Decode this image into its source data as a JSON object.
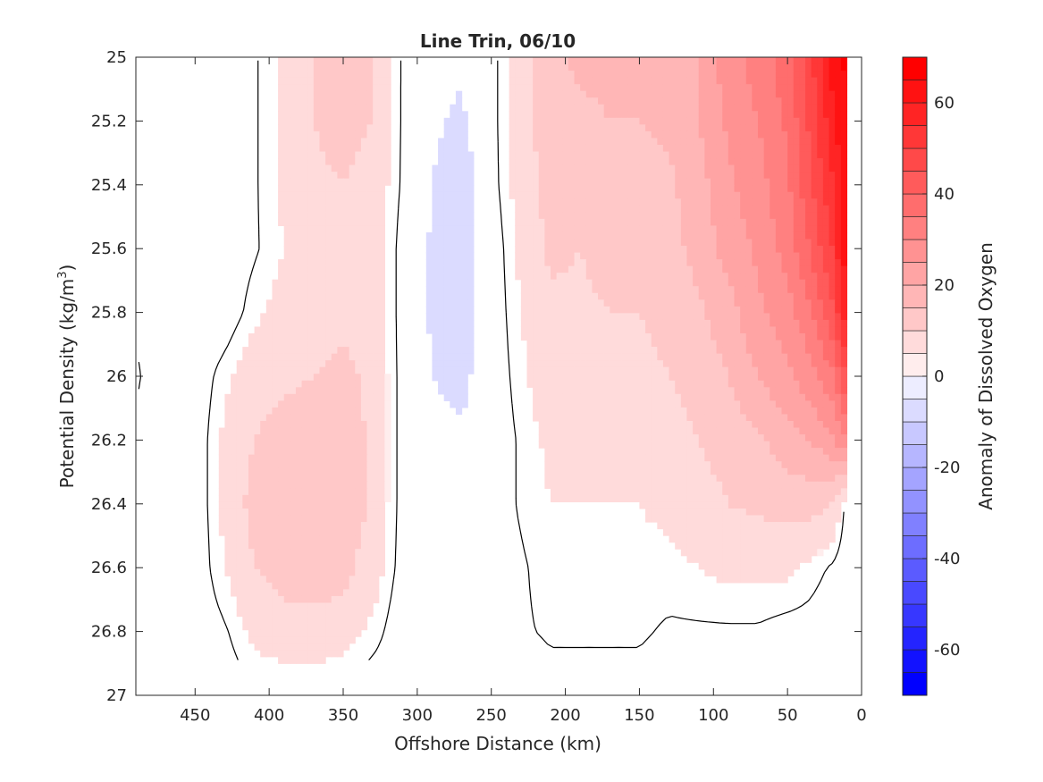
{
  "chart_data": {
    "type": "heatmap",
    "title": "Line Trin, 06/10",
    "xlabel": "Offshore Distance (km)",
    "ylabel_main": "Potential Density (kg/m",
    "ylabel_sup": "3",
    "ylabel_close": ")",
    "xlim": [
      490,
      0
    ],
    "ylim": [
      25,
      27
    ],
    "y_reversed": true,
    "x_reversed": true,
    "x_ticks": [
      450,
      400,
      350,
      300,
      250,
      200,
      150,
      100,
      50,
      0
    ],
    "x_tick_labels": [
      "450",
      "400",
      "350",
      "300",
      "250",
      "200",
      "150",
      "100",
      "50",
      "0"
    ],
    "y_ticks": [
      25,
      25.2,
      25.4,
      25.6,
      25.8,
      26,
      26.2,
      26.4,
      26.6,
      26.8,
      27
    ],
    "y_tick_labels": [
      "25",
      "25.2",
      "25.4",
      "25.6",
      "25.8",
      "26",
      "26.2",
      "26.4",
      "26.6",
      "26.8",
      "27"
    ],
    "colorbar": {
      "label": "Anomaly of Dissolved Oxygen",
      "range": [
        -70,
        70
      ],
      "step": 5,
      "ticks": [
        60,
        40,
        20,
        0,
        -20,
        -40,
        -60
      ],
      "tick_labels": [
        "60",
        "40",
        "20",
        "0",
        "-20",
        "-40",
        "-60"
      ],
      "colormap": "blue-white-red",
      "negative_color": "#0000ff",
      "positive_color": "#ff0000"
    },
    "grid": false,
    "x": [
      490,
      470,
      450,
      430,
      410,
      390,
      370,
      350,
      330,
      310,
      290,
      270,
      250,
      230,
      210,
      190,
      170,
      150,
      130,
      110,
      90,
      70,
      50,
      35,
      20,
      10
    ],
    "y": [
      25.0,
      25.2,
      25.4,
      25.6,
      25.8,
      26.0,
      26.2,
      26.4,
      26.6,
      26.8,
      26.9
    ],
    "values": [
      [
        0,
        0,
        0,
        0,
        2,
        6,
        10,
        12,
        10,
        2,
        -3,
        -4,
        1,
        8,
        14,
        16,
        16,
        16,
        17,
        20,
        28,
        32,
        38,
        48,
        62,
        66
      ],
      [
        0,
        0,
        0,
        0,
        2,
        6,
        10,
        12,
        10,
        2,
        -4,
        -6,
        1,
        8,
        13,
        14,
        15,
        15,
        16,
        20,
        26,
        30,
        36,
        46,
        58,
        66
      ],
      [
        0,
        0,
        0,
        0,
        2,
        6,
        9,
        10,
        8,
        2,
        -5,
        -9,
        1,
        7,
        12,
        12,
        13,
        13,
        14,
        18,
        24,
        28,
        34,
        44,
        54,
        64
      ],
      [
        0,
        0,
        0,
        0,
        2,
        5,
        8,
        9,
        8,
        1,
        -6,
        -10,
        0,
        6,
        11,
        10,
        12,
        12,
        13,
        17,
        22,
        26,
        32,
        40,
        50,
        64
      ],
      [
        2,
        0,
        0,
        0,
        4,
        7,
        8,
        9,
        8,
        1,
        -6,
        -9,
        0,
        5,
        9,
        9,
        10,
        10,
        11,
        14,
        18,
        24,
        28,
        34,
        44,
        60
      ],
      [
        3,
        0,
        0,
        4,
        8,
        9,
        10,
        11,
        9,
        1,
        -5,
        -7,
        0,
        4,
        8,
        8,
        9,
        9,
        10,
        12,
        15,
        20,
        24,
        28,
        34,
        46
      ],
      [
        2,
        -1,
        0,
        6,
        10,
        12,
        13,
        13,
        9,
        1,
        -3,
        -4,
        0,
        3,
        6,
        6,
        7,
        7,
        8,
        10,
        12,
        14,
        18,
        20,
        24,
        30
      ],
      [
        1,
        -3,
        0,
        6,
        12,
        13,
        15,
        14,
        9,
        1,
        -1,
        -1,
        0,
        3,
        5,
        5,
        5,
        5,
        6,
        8,
        10,
        11,
        12,
        12,
        10,
        1
      ],
      [
        0,
        0,
        0,
        5,
        10,
        12,
        13,
        12,
        7,
        1,
        0,
        0,
        0,
        2,
        4,
        4,
        4,
        4,
        4,
        5,
        6,
        6,
        6,
        4,
        2,
        0
      ],
      [
        0,
        0,
        0,
        2,
        6,
        8,
        8,
        7,
        4,
        0,
        0,
        0,
        0,
        2,
        3,
        3,
        3,
        3,
        2,
        2,
        2,
        2,
        1,
        1,
        0,
        0
      ],
      [
        0,
        0,
        0,
        1,
        4,
        5,
        5,
        4,
        2,
        0,
        0,
        0,
        0,
        1,
        2,
        2,
        2,
        2,
        1,
        1,
        1,
        1,
        0,
        0,
        0,
        0
      ]
    ]
  }
}
